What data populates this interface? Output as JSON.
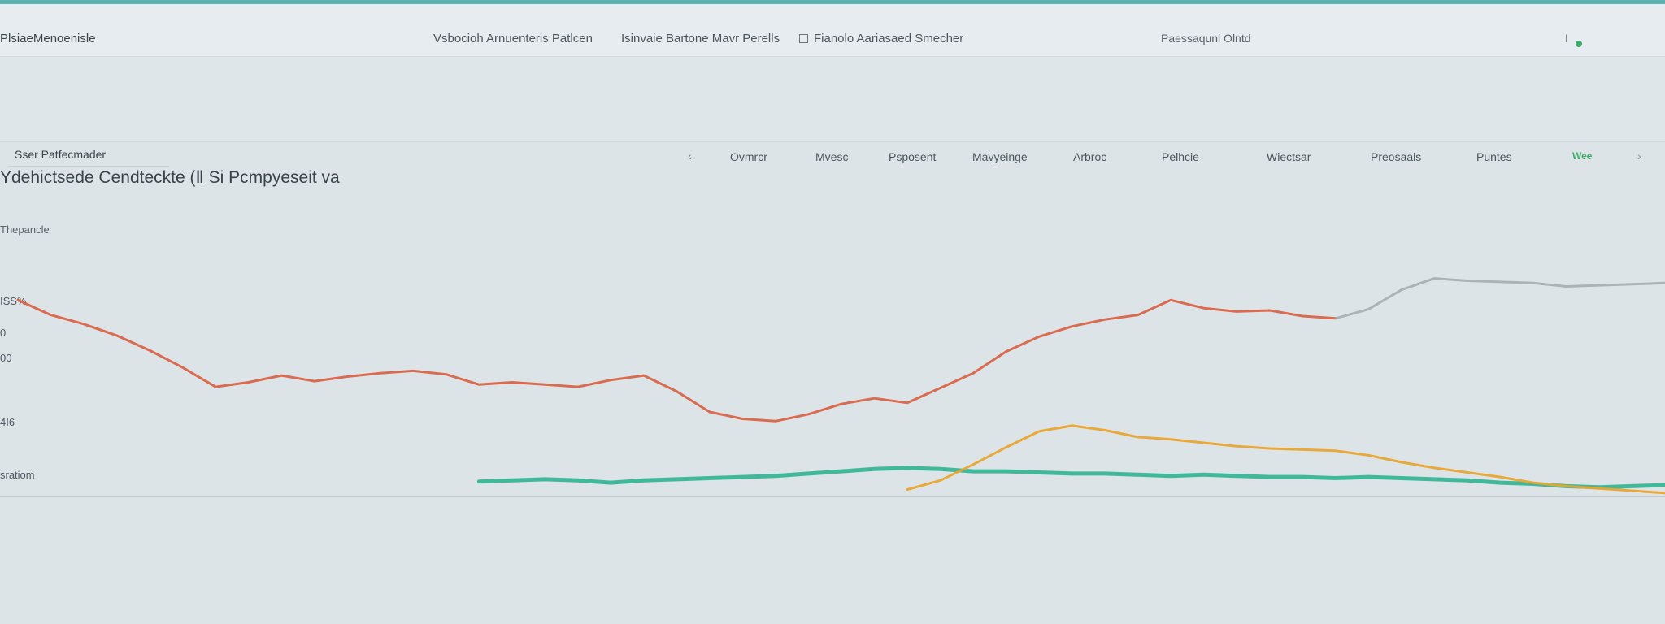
{
  "app": {
    "title": "PlsiaeMenoenisle",
    "accent_color": "#5fb3b3"
  },
  "top_nav": {
    "links": [
      "Vsbocioh Arnuenteris Patlcen",
      "Isinvaie Bartone Mavr Perells",
      "Fianolo Aariasaed Smecher"
    ],
    "link_icon": "square-icon",
    "right_label": "Paessaqunl Olntd",
    "right_status": "I"
  },
  "toolbar": {
    "search_value": "Sser Patfecmader",
    "chevron": "‹",
    "tabs": [
      "Ovmrcr",
      "Mvesc",
      "Psposent",
      "Mavyeinge",
      "Arbroc",
      "Pelhcie",
      "Wiectsar",
      "Preosaals",
      "Puntes"
    ],
    "action_label": "Wee",
    "action_color": "#3fa86a"
  },
  "chart_data": {
    "type": "line",
    "title": "Ydehictsede Cendteckte (Ⅱ Si Pcmpyeseit va",
    "ylabel": "Thepancle",
    "y_tick_labels": [
      "ISS%",
      "0",
      "00",
      "4I6",
      "sratiom"
    ],
    "x": [
      0,
      2,
      4,
      6,
      8,
      10,
      12,
      14,
      16,
      18,
      20,
      22,
      24,
      26,
      28,
      30,
      32,
      34,
      36,
      38,
      40,
      42,
      44,
      46,
      48,
      50,
      52,
      54,
      56,
      58,
      60,
      62,
      64,
      66,
      68,
      70,
      72,
      74,
      76,
      78,
      80,
      82,
      84,
      86,
      88,
      90,
      92,
      94,
      96,
      98,
      100
    ],
    "ylim": [
      0,
      100
    ],
    "grid": false,
    "legend": "none",
    "series": [
      {
        "color": "#d86448",
        "values": [
          86.0,
          79.5,
          75.5,
          70.5,
          64.0,
          56.5,
          48.0,
          50.0,
          53.0,
          50.5,
          52.5,
          54.0,
          55.0,
          53.5,
          49.0,
          50.0,
          49.0,
          48.0,
          51.0,
          53.0,
          46.0,
          37.0,
          34.0,
          33.0,
          36.0,
          40.5,
          43.0,
          41.0,
          47.5,
          54.0,
          63.5,
          70.0,
          74.5,
          77.5,
          79.5,
          86.0,
          82.5,
          81.0,
          81.5,
          79.0,
          78.0,
          null,
          null,
          null,
          null,
          null,
          null,
          null,
          null,
          null,
          null
        ]
      },
      {
        "color": "#9aa3a6",
        "values": [
          null,
          null,
          null,
          null,
          null,
          null,
          null,
          null,
          null,
          null,
          null,
          null,
          null,
          null,
          null,
          null,
          null,
          null,
          null,
          null,
          null,
          null,
          null,
          null,
          null,
          null,
          null,
          null,
          null,
          null,
          null,
          null,
          null,
          null,
          null,
          null,
          null,
          null,
          null,
          null,
          78.0,
          82.0,
          90.5,
          95.5,
          94.5,
          94.0,
          93.5,
          92.0,
          92.5,
          93.0,
          93.5
        ]
      },
      {
        "color": "#38b596",
        "values": [
          null,
          null,
          null,
          null,
          null,
          null,
          null,
          null,
          null,
          null,
          null,
          null,
          null,
          null,
          6.5,
          7.0,
          7.5,
          7.0,
          6.0,
          7.0,
          7.5,
          8.0,
          8.5,
          9.0,
          10.0,
          11.0,
          12.0,
          12.5,
          12.0,
          11.0,
          11.0,
          10.5,
          10.0,
          10.0,
          9.5,
          9.0,
          9.5,
          9.0,
          8.5,
          8.5,
          8.0,
          8.5,
          8.0,
          7.5,
          7.0,
          6.0,
          5.5,
          4.5,
          4.0,
          4.5,
          5.0
        ]
      },
      {
        "color": "#e8a530",
        "values": [
          null,
          null,
          null,
          null,
          null,
          null,
          null,
          null,
          null,
          null,
          null,
          null,
          null,
          null,
          null,
          null,
          null,
          null,
          null,
          null,
          null,
          null,
          null,
          null,
          null,
          null,
          null,
          3.0,
          7.0,
          14.0,
          21.5,
          28.5,
          31.0,
          29.0,
          26.0,
          25.0,
          23.5,
          22.0,
          21.0,
          20.5,
          20.0,
          18.0,
          15.0,
          12.5,
          10.5,
          8.5,
          6.0,
          4.5,
          3.5,
          2.5,
          1.5
        ]
      }
    ]
  }
}
